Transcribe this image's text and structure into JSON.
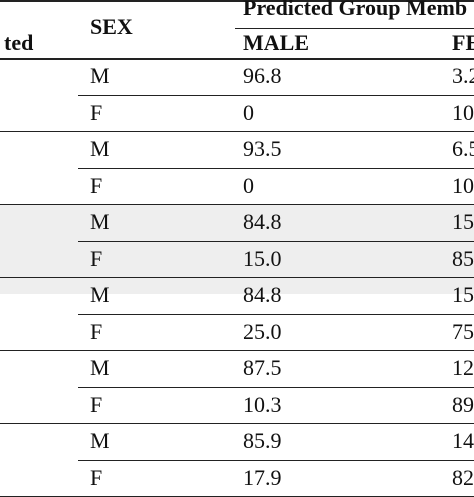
{
  "header": {
    "col0_label": "ted",
    "sex_label": "SEX",
    "group_label": "Predicted Group Memb",
    "male_label": "MALE",
    "female_label": "FE"
  },
  "rows": [
    {
      "sex": "M",
      "male": "96.8",
      "female": "3.2"
    },
    {
      "sex": "F",
      "male": "0",
      "female": "10"
    },
    {
      "sex": "M",
      "male": "93.5",
      "female": "6.5"
    },
    {
      "sex": "F",
      "male": "0",
      "female": "10"
    },
    {
      "sex": "M",
      "male": "84.8",
      "female": "15"
    },
    {
      "sex": "F",
      "male": "15.0",
      "female": "85"
    },
    {
      "sex": "M",
      "male": "84.8",
      "female": "15"
    },
    {
      "sex": "F",
      "male": "25.0",
      "female": "75"
    },
    {
      "sex": "M",
      "male": "87.5",
      "female": "12"
    },
    {
      "sex": "F",
      "male": "10.3",
      "female": "89"
    },
    {
      "sex": "M",
      "male": "85.9",
      "female": "14"
    },
    {
      "sex": "F",
      "male": "17.9",
      "female": "82"
    }
  ],
  "colors": {
    "band": "#eeeeee",
    "rule": "#222222",
    "text": "#111111"
  }
}
